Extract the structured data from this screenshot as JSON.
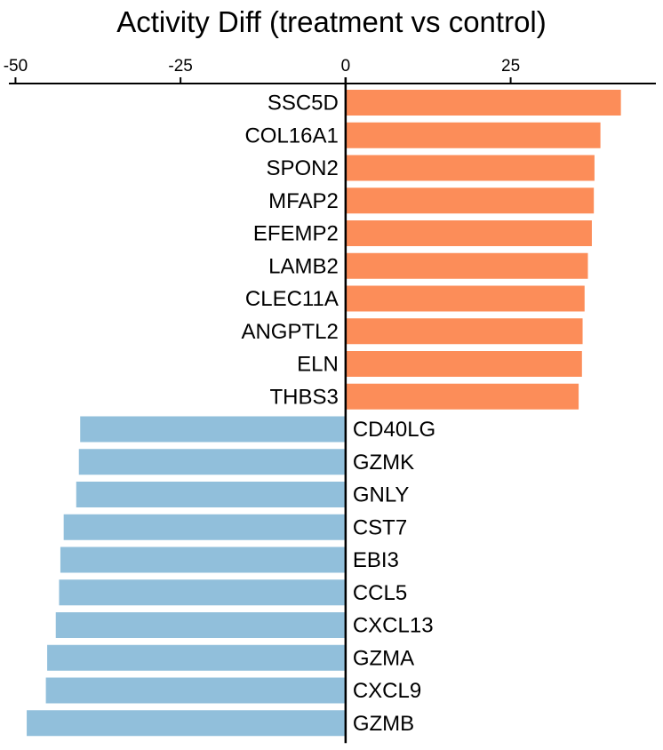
{
  "chart_data": {
    "type": "bar",
    "orientation": "horizontal",
    "title": "Activity Diff (treatment vs control)",
    "xlabel": "",
    "ylabel": "",
    "xlim": [
      -51,
      47
    ],
    "x_ticks": [
      -50,
      -25,
      0,
      25
    ],
    "x_tick_labels": [
      "-50",
      "-25",
      "0",
      "25"
    ],
    "x_axis_position": "top",
    "grid": false,
    "legend": "none",
    "colors": {
      "positive": "#FC8D59",
      "negative": "#91BFDB",
      "axis": "#000000"
    },
    "categories": [
      "SSC5D",
      "COL16A1",
      "SPON2",
      "MFAP2",
      "EFEMP2",
      "LAMB2",
      "CLEC11A",
      "ANGPTL2",
      "ELN",
      "THBS3",
      "CD40LG",
      "GZMK",
      "GNLY",
      "CST7",
      "EBI3",
      "CCL5",
      "CXCL13",
      "GZMA",
      "CXCL9",
      "GZMB"
    ],
    "values": [
      41.7,
      38.6,
      37.7,
      37.6,
      37.3,
      36.7,
      36.2,
      35.9,
      35.8,
      35.3,
      -40.2,
      -40.4,
      -40.8,
      -42.7,
      -43.2,
      -43.4,
      -43.9,
      -45.2,
      -45.4,
      -48.3
    ]
  }
}
